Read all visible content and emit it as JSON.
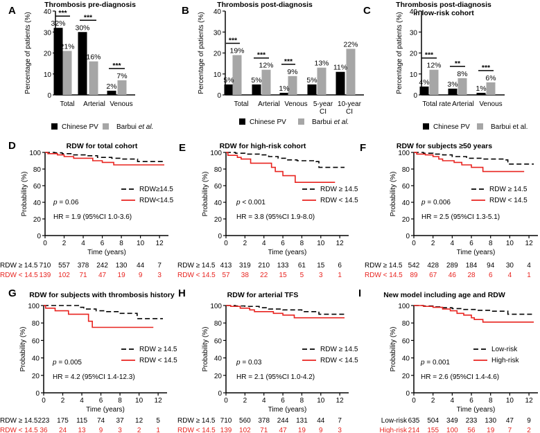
{
  "colors": {
    "chinese_bar": "#000000",
    "barbui_bar": "#a6a6a6",
    "high_rdw_line": "#000000",
    "low_rdw_line": "#e8231f",
    "risk_low_text": "#e8231f"
  },
  "chart_data": [
    {
      "panel": "A",
      "type": "bar",
      "title": "Thrombosis pre-diagnosis",
      "ylabel": "Percentage of patients (%)",
      "ylim": [
        0,
        40
      ],
      "yticks": [
        0,
        10,
        20,
        30,
        40
      ],
      "categories": [
        "Total",
        "Arterial",
        "Venous"
      ],
      "series": [
        {
          "name": "Chinese PV",
          "values": [
            32,
            30,
            2
          ],
          "labels": [
            "32%",
            "30%",
            "2%"
          ]
        },
        {
          "name": "Barbui et al.",
          "values": [
            21,
            16,
            7
          ],
          "labels": [
            "21%",
            "16%",
            "7%"
          ]
        }
      ],
      "significance": [
        "***",
        "***",
        "***"
      ],
      "legend": [
        "Chinese PV",
        "Barbui ",
        "et al."
      ],
      "legend_italic": true
    },
    {
      "panel": "B",
      "type": "bar",
      "title": "Thrombosis post-diagnosis",
      "ylabel": "Percentage of patients (%)",
      "ylim": [
        0,
        40
      ],
      "yticks": [
        0,
        10,
        20,
        30,
        40
      ],
      "categories": [
        "Total",
        "Arterial",
        "Venous",
        "5-year CI",
        "10-year CI"
      ],
      "categories_lines": [
        [
          "Total"
        ],
        [
          "Arterial"
        ],
        [
          "Venous"
        ],
        [
          "5-year",
          "CI"
        ],
        [
          "10-year",
          "CI"
        ]
      ],
      "series": [
        {
          "name": "Chinese PV",
          "values": [
            5,
            5,
            1,
            5,
            11
          ],
          "labels": [
            "5%",
            "5%",
            "1%",
            "5%",
            "11%"
          ]
        },
        {
          "name": "Barbui et al.",
          "values": [
            19,
            12,
            9,
            13,
            22
          ],
          "labels": [
            "19%",
            "12%",
            "9%",
            "13%",
            "22%"
          ]
        }
      ],
      "significance": [
        "***",
        "***",
        "***",
        "",
        ""
      ],
      "legend": [
        "Chinese PV",
        "Barbui ",
        "et al."
      ],
      "legend_italic": true
    },
    {
      "panel": "C",
      "type": "bar",
      "title": "Thrombosis post-diagnosis",
      "title2": "in low-risk cohort",
      "ylabel": "Percentage of patients (%)",
      "ylim": [
        0,
        40
      ],
      "yticks": [
        0,
        10,
        20,
        30,
        40
      ],
      "categories": [
        "Total rate",
        "Arterial",
        "Venous"
      ],
      "series": [
        {
          "name": "Chinese PV",
          "values": [
            4,
            3,
            1
          ],
          "labels": [
            "4%",
            "3%",
            "1%"
          ]
        },
        {
          "name": "Barbui et al.",
          "values": [
            12,
            8,
            6
          ],
          "labels": [
            "12%",
            "8%",
            "6%"
          ]
        }
      ],
      "significance": [
        "***",
        "**",
        "***"
      ],
      "legend": [
        "Chinese PV",
        "Barbui et al.",
        ""
      ],
      "legend_italic": false
    },
    {
      "panel": "D",
      "type": "line",
      "title": "RDW for total cohort",
      "xlabel": "Time (years)",
      "ylabel": "Probability (%)",
      "xlim": [
        0,
        12.5
      ],
      "ylim": [
        0,
        100
      ],
      "xticks": [
        0,
        2,
        4,
        6,
        8,
        10,
        12
      ],
      "yticks": [
        0,
        20,
        40,
        60,
        80,
        100
      ],
      "p_prefix": "p",
      "p_text": " = 0.06",
      "hr_text": "HR = 1.9 (95%CI 1.0-3.6)",
      "series": [
        {
          "name": "RDW≥14.5",
          "style": "dashed",
          "x": [
            0,
            1,
            1.8,
            3,
            4.2,
            5.5,
            7,
            8,
            9.7,
            12.5
          ],
          "y": [
            100,
            99.5,
            98.5,
            97,
            96,
            94,
            93,
            92,
            89,
            89
          ]
        },
        {
          "name": "RDW<14.5",
          "style": "solid",
          "x": [
            0,
            0.3,
            1.3,
            2,
            3,
            5,
            6,
            7.2,
            12.5
          ],
          "y": [
            100,
            98.5,
            97,
            95,
            93,
            90,
            88,
            85,
            85
          ]
        }
      ],
      "risk_table": {
        "rows": [
          {
            "label": "RDW ≥ 14.5",
            "values": [
              "710",
              "557",
              "378",
              "242",
              "130",
              "44",
              "7"
            ]
          },
          {
            "label": "RDW < 14.5",
            "values": [
              "139",
              "102",
              "71",
              "47",
              "19",
              "9",
              "3"
            ]
          }
        ]
      }
    },
    {
      "panel": "E",
      "type": "line",
      "title": "RDW for high-risk cohort",
      "xlabel": "Time (years)",
      "ylabel": "Probability (%)",
      "xlim": [
        0,
        12.5
      ],
      "ylim": [
        0,
        100
      ],
      "xticks": [
        0,
        2,
        4,
        6,
        8,
        10,
        12
      ],
      "yticks": [
        0,
        20,
        40,
        60,
        80,
        100
      ],
      "p_prefix": "p",
      "p_text": " < 0.001",
      "hr_text": "HR = 3.8 (95%CI 1.9-8.0)",
      "series": [
        {
          "name": "RDW ≥ 14.5",
          "style": "dashed",
          "x": [
            0,
            1,
            2,
            3.5,
            4.5,
            5.5,
            6.5,
            7.5,
            9.5,
            9.8,
            12.5
          ],
          "y": [
            100,
            99,
            98,
            97,
            95,
            93,
            91,
            90,
            89,
            82,
            82
          ]
        },
        {
          "name": "RDW < 14.5",
          "style": "solid",
          "x": [
            0,
            0.2,
            1.2,
            1.6,
            2.6,
            4.8,
            5.2,
            6,
            7.3,
            11.5
          ],
          "y": [
            100,
            96.5,
            94,
            92,
            87,
            82,
            77,
            72,
            64,
            64
          ]
        }
      ],
      "risk_table": {
        "rows": [
          {
            "label": "RDW ≥ 14.5",
            "values": [
              "413",
              "319",
              "210",
              "133",
              "61",
              "15",
              "6"
            ]
          },
          {
            "label": "RDW < 14.5",
            "values": [
              "57",
              "38",
              "22",
              "15",
              "5",
              "3",
              "1"
            ]
          }
        ]
      }
    },
    {
      "panel": "F",
      "type": "line",
      "title": "RDW for subjects ≥50 years",
      "xlabel": "Time (years)",
      "ylabel": "Probability (%)",
      "xlim": [
        0,
        12.5
      ],
      "ylim": [
        0,
        100
      ],
      "xticks": [
        0,
        2,
        4,
        6,
        8,
        10,
        12
      ],
      "yticks": [
        0,
        20,
        40,
        60,
        80,
        100
      ],
      "p_prefix": "p",
      "p_text": " = 0.006",
      "hr_text": "HR = 2.5 (95%CI 1.3-5.1)",
      "series": [
        {
          "name": "RDW ≥ 14.5",
          "style": "dashed",
          "x": [
            0,
            1,
            2,
            3,
            4,
            5.5,
            7,
            9.5,
            9.8,
            12.5
          ],
          "y": [
            100,
            99,
            98,
            97,
            95,
            93,
            92,
            91,
            86,
            86
          ]
        },
        {
          "name": "RDW < 14.5",
          "style": "solid",
          "x": [
            0,
            0.3,
            1.2,
            2,
            2.6,
            3,
            4.2,
            5,
            6,
            7.2,
            11.5
          ],
          "y": [
            100,
            98,
            97,
            95,
            92,
            90,
            88,
            85,
            82,
            77,
            77
          ]
        }
      ],
      "risk_table": {
        "rows": [
          {
            "label": "RDW ≥ 14.5",
            "values": [
              "542",
              "428",
              "289",
              "184",
              "94",
              "30",
              "4"
            ]
          },
          {
            "label": "RDW < 14.5",
            "values": [
              "89",
              "67",
              "46",
              "28",
              "6",
              "4",
              "1"
            ]
          }
        ]
      }
    },
    {
      "panel": "G",
      "type": "line",
      "title": "RDW for subjects with thrombosis history",
      "xlabel": "Time (years)",
      "ylabel": "Probability (%)",
      "xlim": [
        0,
        12.5
      ],
      "ylim": [
        0,
        100
      ],
      "xticks": [
        0,
        2,
        4,
        6,
        8,
        10,
        12
      ],
      "yticks": [
        0,
        20,
        40,
        60,
        80,
        100
      ],
      "p_prefix": "p",
      "p_text": " = 0.005",
      "hr_text": "HR = 4.2 (95%CI 1.4-12.3)",
      "series": [
        {
          "name": "RDW ≥ 14.5",
          "style": "dashed",
          "x": [
            0,
            3.8,
            4.2,
            5.5,
            6.5,
            7.8,
            9.8,
            12.5
          ],
          "y": [
            100,
            98,
            96,
            94,
            93,
            91,
            85,
            85
          ]
        },
        {
          "name": "RDW < 14.5",
          "style": "solid",
          "x": [
            0,
            0.2,
            1.2,
            2.6,
            4.7,
            5.1,
            11.5
          ],
          "y": [
            100,
            97,
            94,
            90,
            82,
            75,
            75
          ]
        }
      ],
      "risk_table": {
        "rows": [
          {
            "label": "RDW ≥ 14.5",
            "values": [
              "223",
              "175",
              "115",
              "74",
              "37",
              "12",
              "5"
            ]
          },
          {
            "label": "RDW < 14.5",
            "values": [
              "36",
              "24",
              "13",
              "9",
              "3",
              "2",
              "1"
            ]
          }
        ]
      }
    },
    {
      "panel": "H",
      "type": "line",
      "title": "RDW for arterial TFS",
      "xlabel": "Time (years)",
      "ylabel": "Probability (%)",
      "xlim": [
        0,
        12.5
      ],
      "ylim": [
        0,
        100
      ],
      "xticks": [
        0,
        2,
        4,
        6,
        8,
        10,
        12
      ],
      "yticks": [
        0,
        20,
        40,
        60,
        80,
        100
      ],
      "p_prefix": "p",
      "p_text": " = 0.03",
      "hr_text": "HR = 2.1 (95%CI 1.0-4.2)",
      "series": [
        {
          "name": "RDW ≥ 14.5",
          "style": "dashed",
          "x": [
            0,
            1,
            2,
            3.5,
            4.5,
            6,
            8,
            9.8,
            12.5
          ],
          "y": [
            100,
            99.5,
            99,
            97.5,
            96,
            95,
            93,
            90,
            90
          ]
        },
        {
          "name": "RDW < 14.5",
          "style": "solid",
          "x": [
            0,
            0.5,
            1.5,
            2.5,
            3,
            5,
            6,
            7.2,
            12.5
          ],
          "y": [
            100,
            99,
            97,
            95,
            93,
            91,
            89,
            86,
            86
          ]
        }
      ],
      "risk_table": {
        "rows": [
          {
            "label": "RDW ≥ 14.5",
            "values": [
              "710",
              "560",
              "378",
              "244",
              "131",
              "44",
              "7"
            ]
          },
          {
            "label": "RDW < 14.5",
            "values": [
              "139",
              "102",
              "71",
              "47",
              "19",
              "9",
              "3"
            ]
          }
        ]
      }
    },
    {
      "panel": "I",
      "type": "line",
      "title": "New model including age and RDW",
      "xlabel": "Time (years)",
      "ylabel": "Probability (%)",
      "xlim": [
        0,
        12.5
      ],
      "ylim": [
        0,
        100
      ],
      "xticks": [
        0,
        2,
        4,
        6,
        8,
        10,
        12
      ],
      "yticks": [
        0,
        20,
        40,
        60,
        80,
        100
      ],
      "p_prefix": "p",
      "p_text": " = 0.001",
      "hr_text": "HR = 2.6 (95%CI 1.4-4.6)",
      "series": [
        {
          "name": "Low-risk",
          "style": "dashed",
          "x": [
            0,
            1,
            2,
            3,
            4,
            5,
            6.5,
            8,
            9.8,
            12.5
          ],
          "y": [
            100,
            99.5,
            98.5,
            97.5,
            96.5,
            95.5,
            94.5,
            93.5,
            90,
            90
          ]
        },
        {
          "name": "High-risk",
          "style": "solid",
          "x": [
            0,
            1,
            2,
            3,
            3.8,
            4.5,
            5.2,
            6,
            6.3,
            7.2,
            12.5
          ],
          "y": [
            100,
            99,
            98,
            96,
            94,
            91,
            89,
            86,
            84,
            81,
            81
          ]
        }
      ],
      "risk_table": {
        "rows": [
          {
            "label": "Low-risk",
            "values": [
              "635",
              "504",
              "349",
              "233",
              "130",
              "47",
              "9"
            ]
          },
          {
            "label": "High-risk",
            "values": [
              "214",
              "155",
              "100",
              "56",
              "19",
              "7",
              "2"
            ]
          }
        ]
      }
    }
  ]
}
